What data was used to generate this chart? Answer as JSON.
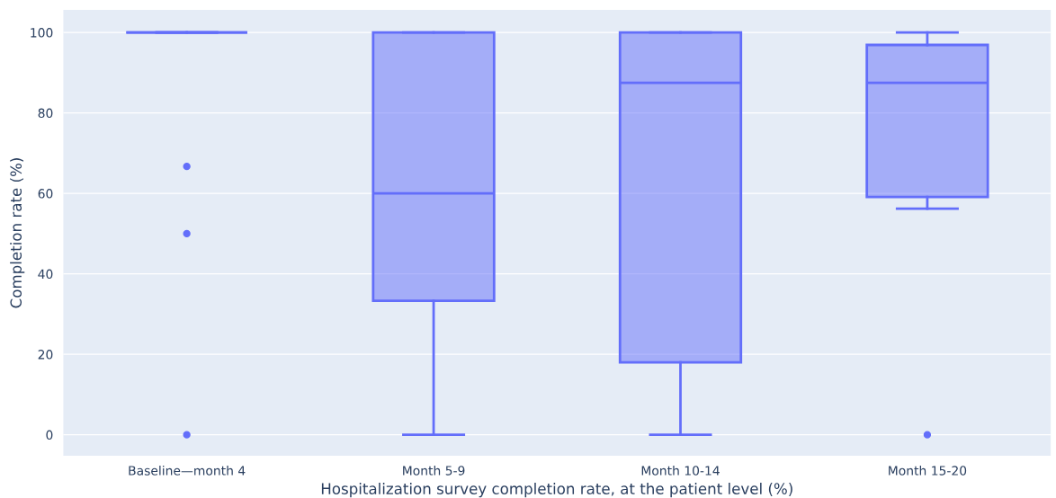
{
  "chart_data": {
    "type": "box",
    "xlabel": "Hospitalization survey completion rate, at the patient level (%)",
    "ylabel": "Completion rate (%)",
    "categories": [
      "Baseline—month 4",
      "Month 5-9",
      "Month 10-14",
      "Month 15-20"
    ],
    "series": [
      {
        "color": "#636efa",
        "boxes": [
          {
            "low": 100,
            "q1": 100,
            "median": 100,
            "q3": 100,
            "high": 100,
            "outliers": [
              66.7,
              50,
              0
            ]
          },
          {
            "low": 0,
            "q1": 33.3,
            "median": 60,
            "q3": 100,
            "high": 100
          },
          {
            "low": 0,
            "q1": 18,
            "median": 87.5,
            "q3": 100,
            "high": 100
          },
          {
            "low": 56.2,
            "q1": 59.1,
            "median": 87.5,
            "q3": 96.9,
            "high": 100,
            "outliers": [
              0
            ]
          }
        ]
      }
    ],
    "ylim": [
      -5.2,
      105.6
    ],
    "yticks": [
      0,
      20,
      40,
      60,
      80,
      100
    ],
    "grid": "y"
  }
}
